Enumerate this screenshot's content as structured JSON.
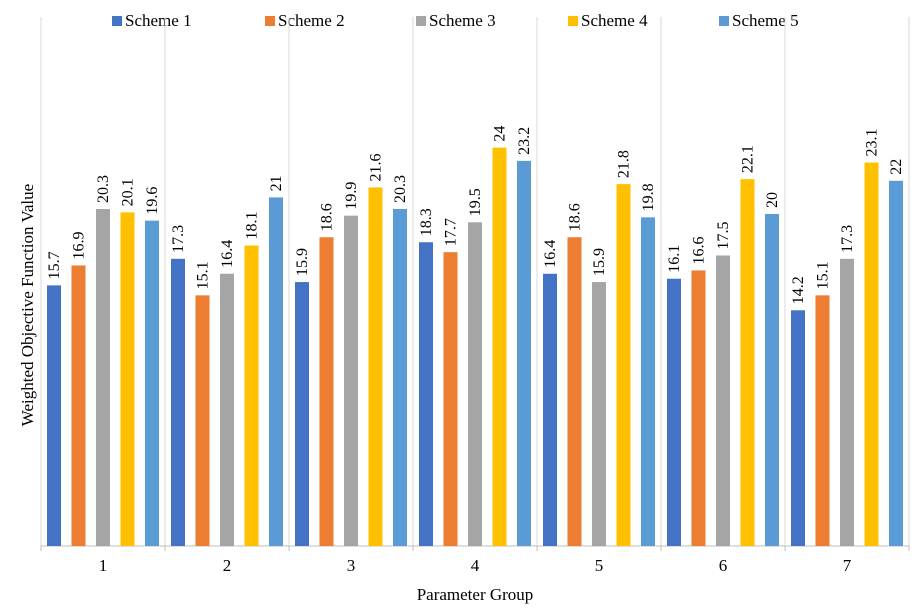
{
  "chart_data": {
    "type": "bar",
    "title": "",
    "xlabel": "Parameter Group",
    "ylabel": "Weighted Objective Function Value",
    "categories": [
      "1",
      "2",
      "3",
      "4",
      "5",
      "6",
      "7"
    ],
    "ylim": [
      0,
      25
    ],
    "grid": "vertical-only",
    "legend_position": "top",
    "series": [
      {
        "name": "Scheme 1",
        "color": "#4472C4",
        "values": [
          15.7,
          17.3,
          15.9,
          18.3,
          16.4,
          16.1,
          14.2
        ]
      },
      {
        "name": "Scheme 2",
        "color": "#ED7D31",
        "values": [
          16.9,
          15.1,
          18.6,
          17.7,
          18.6,
          16.6,
          15.1
        ]
      },
      {
        "name": "Scheme 3",
        "color": "#A5A5A5",
        "values": [
          20.3,
          16.4,
          19.9,
          19.5,
          15.9,
          17.5,
          17.3
        ]
      },
      {
        "name": "Scheme 4",
        "color": "#FFC000",
        "values": [
          20.1,
          18.1,
          21.6,
          24,
          21.8,
          22.1,
          23.1
        ]
      },
      {
        "name": "Scheme 5",
        "color": "#5B9BD5",
        "values": [
          19.6,
          21,
          20.3,
          23.2,
          19.8,
          20,
          22
        ]
      }
    ]
  }
}
